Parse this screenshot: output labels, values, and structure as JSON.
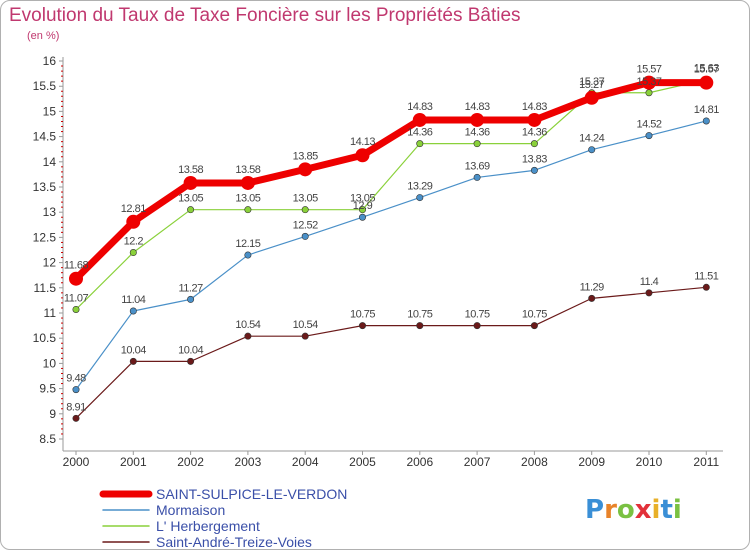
{
  "header": {
    "title": "Evolution du Taux de Taxe Foncière sur les Propriétés Bâties",
    "unit": "(en %)"
  },
  "logo": {
    "text": "Proxiti",
    "letters": [
      "P",
      "r",
      "o",
      "x",
      "i",
      "t",
      "i"
    ],
    "colors": [
      "#3a8fd6",
      "#e8832a",
      "#7ac142",
      "#e2313a",
      "#e8b02a",
      "#3a8fd6",
      "#7ac142"
    ]
  },
  "chart_data": {
    "type": "line",
    "title": "Evolution du Taux de Taxe Foncière sur les Propriétés Bâties",
    "ylabel": "(en %)",
    "xlabel": "",
    "ylim": [
      8.5,
      16
    ],
    "yticks": [
      "8.5",
      "9",
      "9.5",
      "10",
      "10.5",
      "11",
      "11.5",
      "12",
      "12.5",
      "13",
      "13.5",
      "14",
      "14.5",
      "15",
      "15.5",
      "16"
    ],
    "categories": [
      "2000",
      "2001",
      "2002",
      "2003",
      "2004",
      "2005",
      "2006",
      "2007",
      "2008",
      "2009",
      "2010",
      "2011"
    ],
    "grid": false,
    "series": [
      {
        "name": "SAINT-SULPICE-LE-VERDON",
        "color": "#ee0000",
        "bold": true,
        "values": [
          11.68,
          12.81,
          13.58,
          13.58,
          13.85,
          14.13,
          14.83,
          14.83,
          14.83,
          15.27,
          15.57,
          15.57
        ],
        "labels": [
          "11.68",
          "12.81",
          "13.58",
          "13.58",
          "13.85",
          "14.13",
          "14.83",
          "14.83",
          "14.83",
          "15.27",
          "15.57",
          "15.57"
        ]
      },
      {
        "name": "Mormaison",
        "color": "#4a90c8",
        "bold": false,
        "values": [
          9.48,
          11.04,
          11.27,
          12.15,
          12.52,
          12.9,
          13.29,
          13.69,
          13.83,
          14.24,
          14.52,
          14.81
        ],
        "labels": [
          "9.48",
          "11.04",
          "11.27",
          "12.15",
          "12.52",
          "12.9",
          "13.29",
          "13.69",
          "13.83",
          "14.24",
          "14.52",
          "14.81"
        ]
      },
      {
        "name": "L' Herbergement",
        "color": "#8ad13a",
        "bold": false,
        "values": [
          11.07,
          12.2,
          13.05,
          13.05,
          13.05,
          13.05,
          14.36,
          14.36,
          14.36,
          15.37,
          15.37,
          15.63
        ],
        "labels": [
          "11.07",
          "12.2",
          "13.05",
          "13.05",
          "13.05",
          "13.05",
          "14.36",
          "14.36",
          "14.36",
          "15.37",
          "15.37",
          "15.63"
        ]
      },
      {
        "name": "Saint-André-Treize-Voies",
        "color": "#6b1a1a",
        "bold": false,
        "values": [
          8.91,
          10.04,
          10.04,
          10.54,
          10.54,
          10.75,
          10.75,
          10.75,
          10.75,
          11.29,
          11.4,
          11.51
        ],
        "labels": [
          "8.91",
          "10.04",
          "10.04",
          "10.54",
          "10.54",
          "10.75",
          "10.75",
          "10.75",
          "10.75",
          "11.29",
          "11.4",
          "11.51"
        ]
      }
    ]
  }
}
